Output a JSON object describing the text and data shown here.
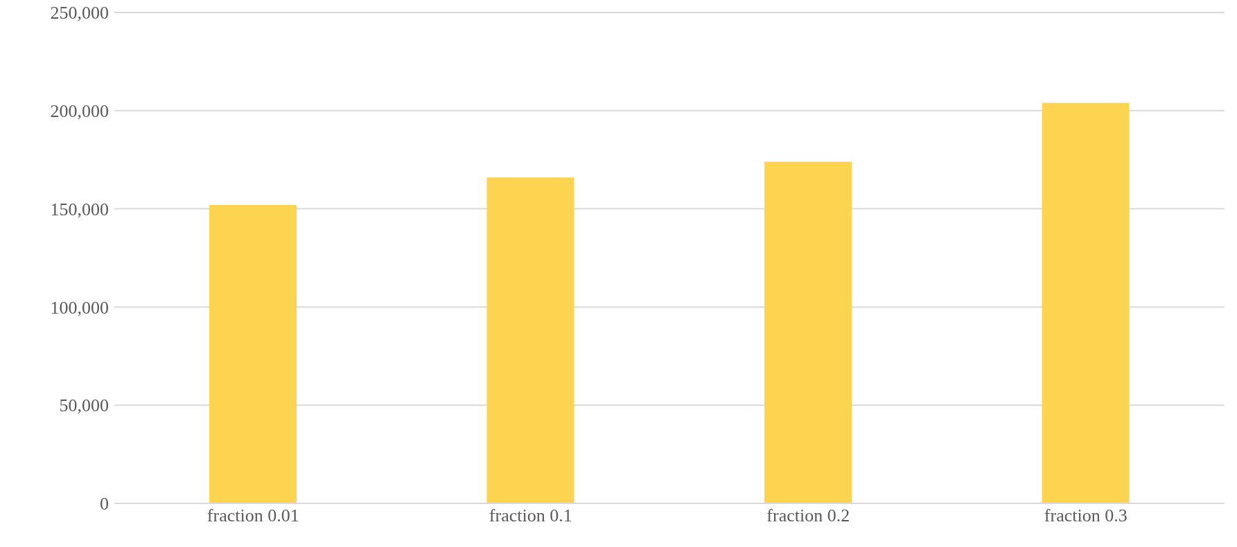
{
  "chart_data": {
    "type": "bar",
    "categories": [
      "fraction 0.01",
      "fraction 0.1",
      "fraction 0.2",
      "fraction 0.3"
    ],
    "values": [
      152000,
      166000,
      174000,
      204000
    ],
    "color": "#fdd44f",
    "ylim": [
      0,
      250000
    ],
    "yticks": [
      {
        "value": 0,
        "label": "0"
      },
      {
        "value": 50000,
        "label": "50,000"
      },
      {
        "value": 100000,
        "label": "100,000"
      },
      {
        "value": 150000,
        "label": "150,000"
      },
      {
        "value": 200000,
        "label": "200,000"
      },
      {
        "value": 250000,
        "label": "250,000"
      }
    ],
    "grid": "y"
  }
}
